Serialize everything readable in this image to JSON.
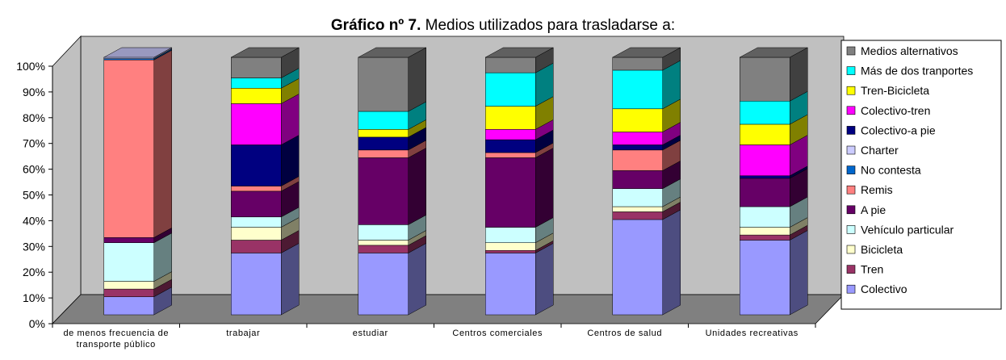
{
  "chart_data": {
    "type": "bar3d_stacked",
    "title_prefix": "Gráfico nº 7.",
    "title": "Medios utilizados para trasladarse a:",
    "categories": [
      "de menos frecuencia de transporte público",
      "trabajar",
      "estudiar",
      "Centros comerciales",
      "Centros de salud",
      "Unidades recreativas"
    ],
    "series": [
      {
        "name": "Colectivo",
        "color": "#9999ff",
        "values": [
          7,
          24,
          24,
          24,
          37,
          29
        ]
      },
      {
        "name": "Tren",
        "color": "#993366",
        "values": [
          3,
          5,
          3,
          1,
          3,
          2
        ]
      },
      {
        "name": "Bicicleta",
        "color": "#ffffcc",
        "values": [
          3,
          5,
          2,
          3,
          2,
          3
        ]
      },
      {
        "name": "Vehículo particular",
        "color": "#ccffff",
        "values": [
          15,
          4,
          6,
          6,
          7,
          8
        ]
      },
      {
        "name": "A pie",
        "color": "#660066",
        "values": [
          2,
          10,
          26,
          27,
          7,
          11
        ]
      },
      {
        "name": "Remis",
        "color": "#ff8080",
        "values": [
          69,
          2,
          3,
          2,
          8,
          0
        ]
      },
      {
        "name": "No contesta",
        "color": "#0066cc",
        "values": [
          0.5,
          0,
          0,
          0,
          0,
          0
        ]
      },
      {
        "name": "Charter",
        "color": "#ccccff",
        "values": [
          0.5,
          0,
          0,
          0,
          0,
          0
        ]
      },
      {
        "name": "Colectivo-a pie",
        "color": "#000080",
        "values": [
          0,
          16,
          5,
          5,
          2,
          1
        ]
      },
      {
        "name": "Colectivo-tren",
        "color": "#ff00ff",
        "values": [
          0,
          16,
          0,
          4,
          5,
          12
        ]
      },
      {
        "name": "Tren-Bicicleta",
        "color": "#ffff00",
        "values": [
          0,
          6,
          3,
          9,
          9,
          8
        ]
      },
      {
        "name": "Más de dos tranportes",
        "color": "#00ffff",
        "values": [
          0,
          4,
          7,
          13,
          15,
          9
        ]
      },
      {
        "name": "Medios alternativos",
        "color": "#808080",
        "values": [
          0,
          8,
          21,
          6,
          5,
          17
        ]
      }
    ],
    "ylim": [
      0,
      100
    ],
    "yticks": [
      {
        "value": 0,
        "label": "0%"
      },
      {
        "value": 10,
        "label": "10%"
      },
      {
        "value": 20,
        "label": "20%"
      },
      {
        "value": 30,
        "label": "30%"
      },
      {
        "value": 40,
        "label": "40%"
      },
      {
        "value": 50,
        "label": "50%"
      },
      {
        "value": 60,
        "label": "60%"
      },
      {
        "value": 70,
        "label": "70%"
      },
      {
        "value": 80,
        "label": "80%"
      },
      {
        "value": 90,
        "label": "90%"
      },
      {
        "value": 100,
        "label": "100%"
      }
    ]
  }
}
